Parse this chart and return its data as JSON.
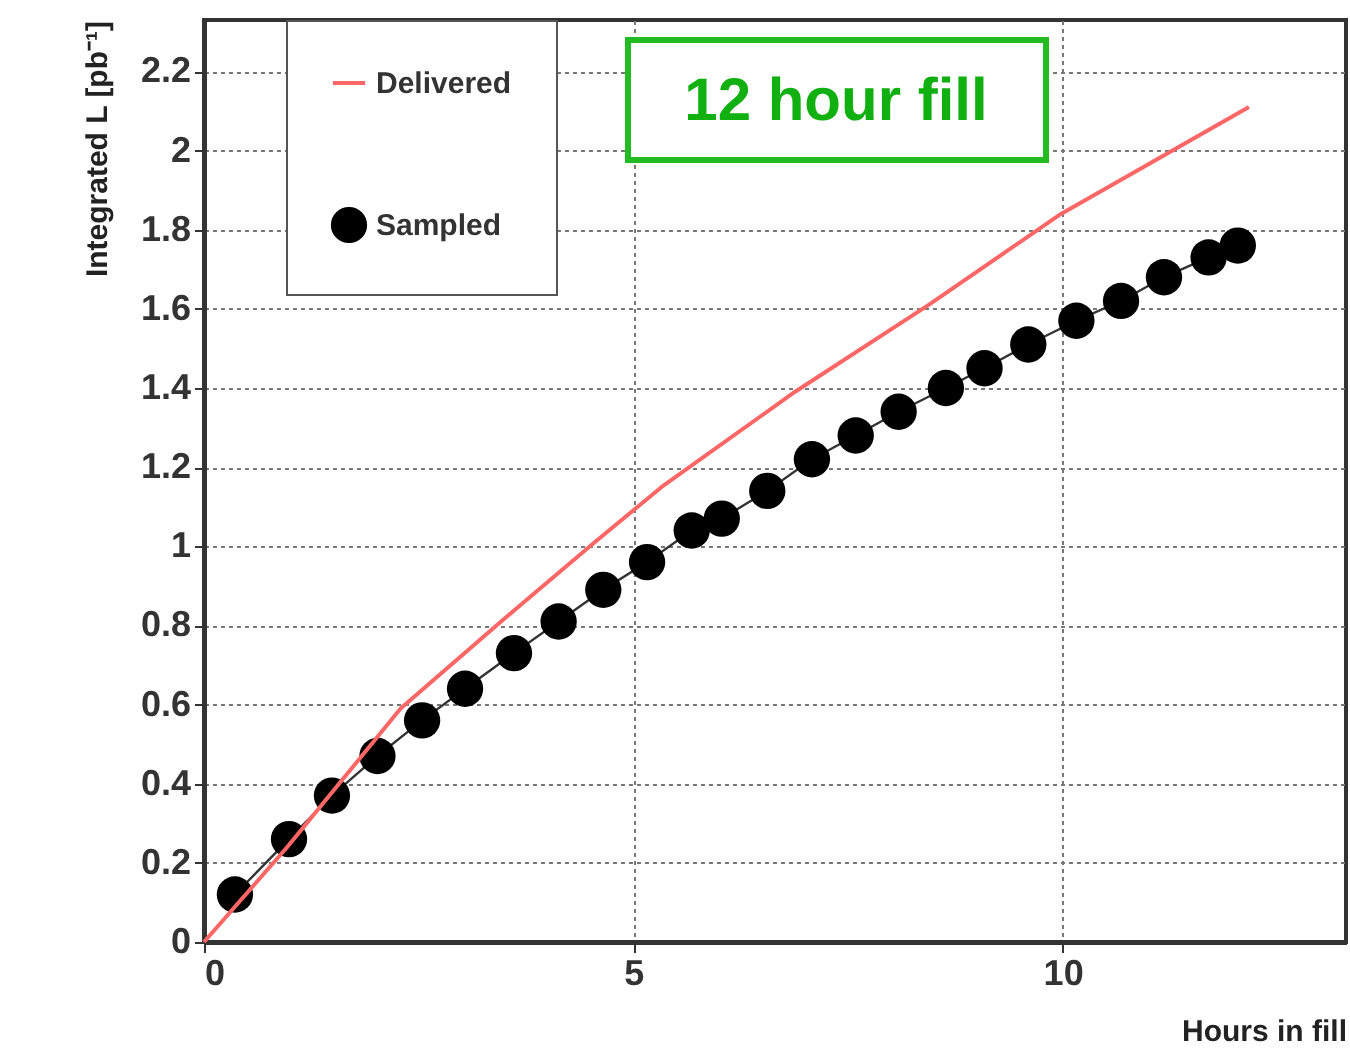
{
  "chart_data": {
    "type": "line",
    "xlabel": "Hours in fill",
    "ylabel": "Integrated L [pb⁻¹]",
    "xlim": [
      0,
      13.3
    ],
    "ylim": [
      0,
      2.33
    ],
    "xticks": [
      0,
      5,
      10
    ],
    "yticks": [
      0,
      0.2,
      0.4,
      0.6,
      0.8,
      1,
      1.2,
      1.4,
      1.6,
      1.8,
      2,
      2.2
    ],
    "grid": true,
    "legend": "top left",
    "annotations": [
      "12 hour fill"
    ],
    "series": [
      {
        "name": "Delivered",
        "color": "#ff6666",
        "marker": "none",
        "x": [
          0,
          0.97,
          2.29,
          3.46,
          4.55,
          5.33,
          6.88,
          8.44,
          9.98,
          12.17
        ],
        "values": [
          0,
          0.24,
          0.59,
          0.81,
          1.01,
          1.15,
          1.39,
          1.61,
          1.84,
          2.11
        ]
      },
      {
        "name": "Sampled",
        "color": "#000000",
        "marker": "circle",
        "x": [
          0.36,
          0.99,
          1.49,
          2.02,
          2.54,
          3.04,
          3.61,
          4.13,
          4.65,
          5.16,
          5.68,
          6.03,
          6.56,
          7.08,
          7.59,
          8.09,
          8.64,
          9.09,
          9.6,
          10.16,
          10.68,
          11.18,
          11.7,
          12.04
        ],
        "values": [
          0.12,
          0.26,
          0.37,
          0.47,
          0.56,
          0.64,
          0.73,
          0.81,
          0.89,
          0.96,
          1.04,
          1.07,
          1.14,
          1.22,
          1.28,
          1.34,
          1.4,
          1.45,
          1.51,
          1.57,
          1.62,
          1.68,
          1.73,
          1.76
        ]
      }
    ]
  }
}
